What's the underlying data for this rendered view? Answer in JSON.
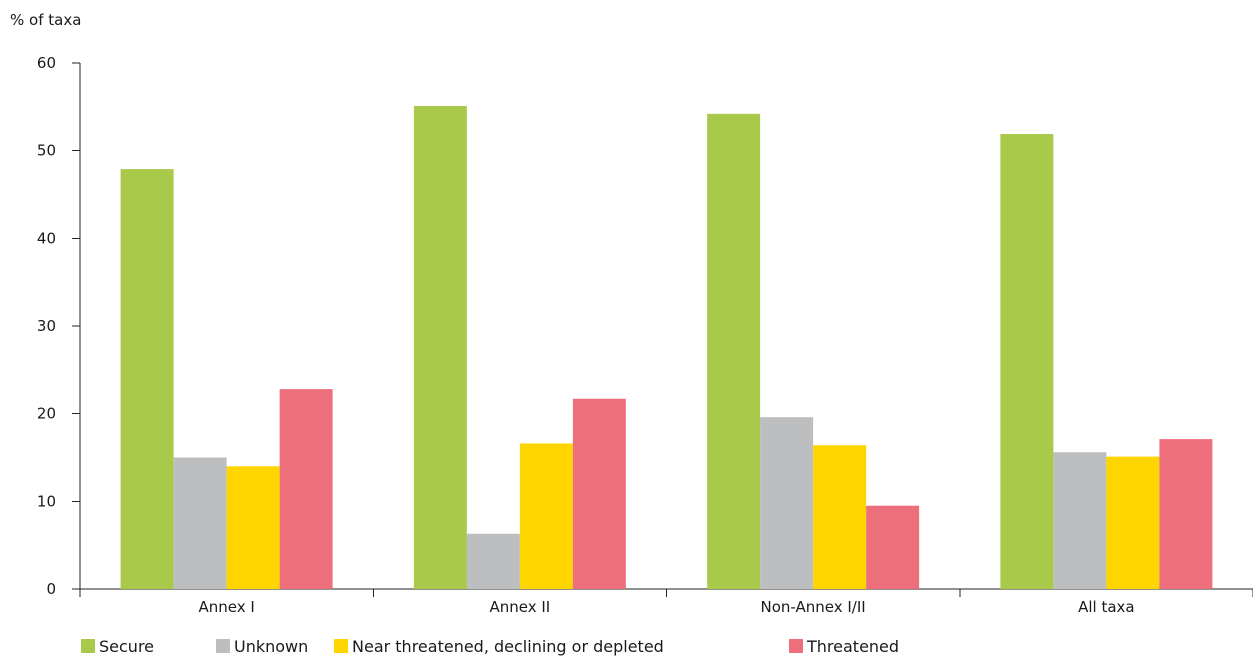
{
  "chart_data": {
    "type": "bar",
    "title": "",
    "ylabel": "% of taxa",
    "xlabel": "",
    "ylim": [
      0,
      60
    ],
    "yticks": [
      0,
      10,
      20,
      30,
      40,
      50,
      60
    ],
    "grid": false,
    "legend_position": "bottom",
    "categories": [
      "Annex I",
      "Annex II",
      "Non-Annex I/II",
      "All taxa"
    ],
    "series": [
      {
        "name": "Secure",
        "color": "#a9c94b",
        "values": [
          47.9,
          55.1,
          54.2,
          51.9
        ]
      },
      {
        "name": "Unknown",
        "color": "#bdbec0",
        "values": [
          15.0,
          6.3,
          19.6,
          15.6
        ]
      },
      {
        "name": "Near threatened, declining or depleted",
        "color": "#ffd500",
        "values": [
          14.0,
          16.6,
          16.4,
          15.1
        ]
      },
      {
        "name": "Threatened",
        "color": "#ee6f7c",
        "values": [
          22.8,
          21.7,
          9.5,
          17.1
        ]
      }
    ]
  }
}
